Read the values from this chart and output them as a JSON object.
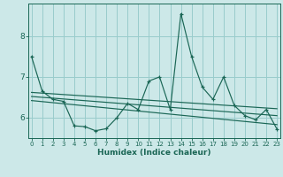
{
  "x": [
    0,
    1,
    2,
    3,
    4,
    5,
    6,
    7,
    8,
    9,
    10,
    11,
    12,
    13,
    14,
    15,
    16,
    17,
    18,
    19,
    20,
    21,
    22,
    23
  ],
  "y_main": [
    7.5,
    6.65,
    6.45,
    6.4,
    5.8,
    5.78,
    5.68,
    5.73,
    6.0,
    6.35,
    6.2,
    6.9,
    7.0,
    6.2,
    8.55,
    7.5,
    6.75,
    6.45,
    7.0,
    6.3,
    6.05,
    5.95,
    6.2,
    5.72
  ],
  "trend_lines": [
    [
      6.62,
      6.22
    ],
    [
      6.52,
      6.05
    ],
    [
      6.42,
      5.83
    ]
  ],
  "bg_color": "#cce8e8",
  "grid_color": "#99cccc",
  "line_color": "#1a6655",
  "xlabel": "Humidex (Indice chaleur)",
  "xlim": [
    -0.3,
    23.3
  ],
  "ylim": [
    5.5,
    8.8
  ],
  "yticks": [
    6,
    7,
    8
  ],
  "xticks": [
    0,
    1,
    2,
    3,
    4,
    5,
    6,
    7,
    8,
    9,
    10,
    11,
    12,
    13,
    14,
    15,
    16,
    17,
    18,
    19,
    20,
    21,
    22,
    23
  ]
}
